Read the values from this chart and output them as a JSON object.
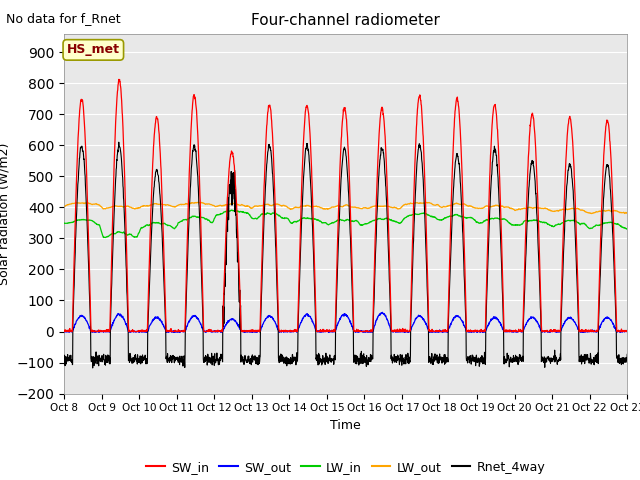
{
  "title": "Four-channel radiometer",
  "top_left_text": "No data for f_Rnet",
  "ylabel": "Solar radiation (W/m2)",
  "xlabel": "Time",
  "legend_label": "HS_met",
  "ylim": [
    -200,
    960
  ],
  "yticks": [
    -200,
    -100,
    0,
    100,
    200,
    300,
    400,
    500,
    600,
    700,
    800,
    900
  ],
  "n_days": 15,
  "colors": {
    "SW_in": "#ff0000",
    "SW_out": "#0000ff",
    "LW_in": "#00cc00",
    "LW_out": "#ffa500",
    "Rnet_4way": "#000000"
  },
  "legend_entries": [
    "SW_in",
    "SW_out",
    "LW_in",
    "LW_out",
    "Rnet_4way"
  ],
  "fig_bg_color": "#ffffff",
  "plot_bg_color": "#e8e8e8",
  "grid_color": "#ffffff",
  "label_box_color": "#ffffcc",
  "label_box_edge": "#999900",
  "sw_in_peaks": [
    750,
    810,
    690,
    760,
    580,
    730,
    730,
    720,
    720,
    760,
    750,
    730,
    700,
    690,
    680
  ],
  "sw_out_peaks": [
    50,
    55,
    45,
    50,
    40,
    50,
    55,
    55,
    60,
    50,
    50,
    45,
    45,
    45,
    45
  ],
  "rnet_peaks": [
    600,
    600,
    520,
    600,
    490,
    600,
    600,
    590,
    590,
    600,
    570,
    590,
    550,
    540,
    535
  ],
  "lw_in_base": [
    340,
    300,
    330,
    350,
    370,
    360,
    345,
    340,
    345,
    360,
    355,
    345,
    340,
    335,
    330
  ],
  "lw_out_base": [
    405,
    395,
    400,
    405,
    400,
    400,
    395,
    395,
    395,
    405,
    400,
    395,
    390,
    385,
    380
  ]
}
